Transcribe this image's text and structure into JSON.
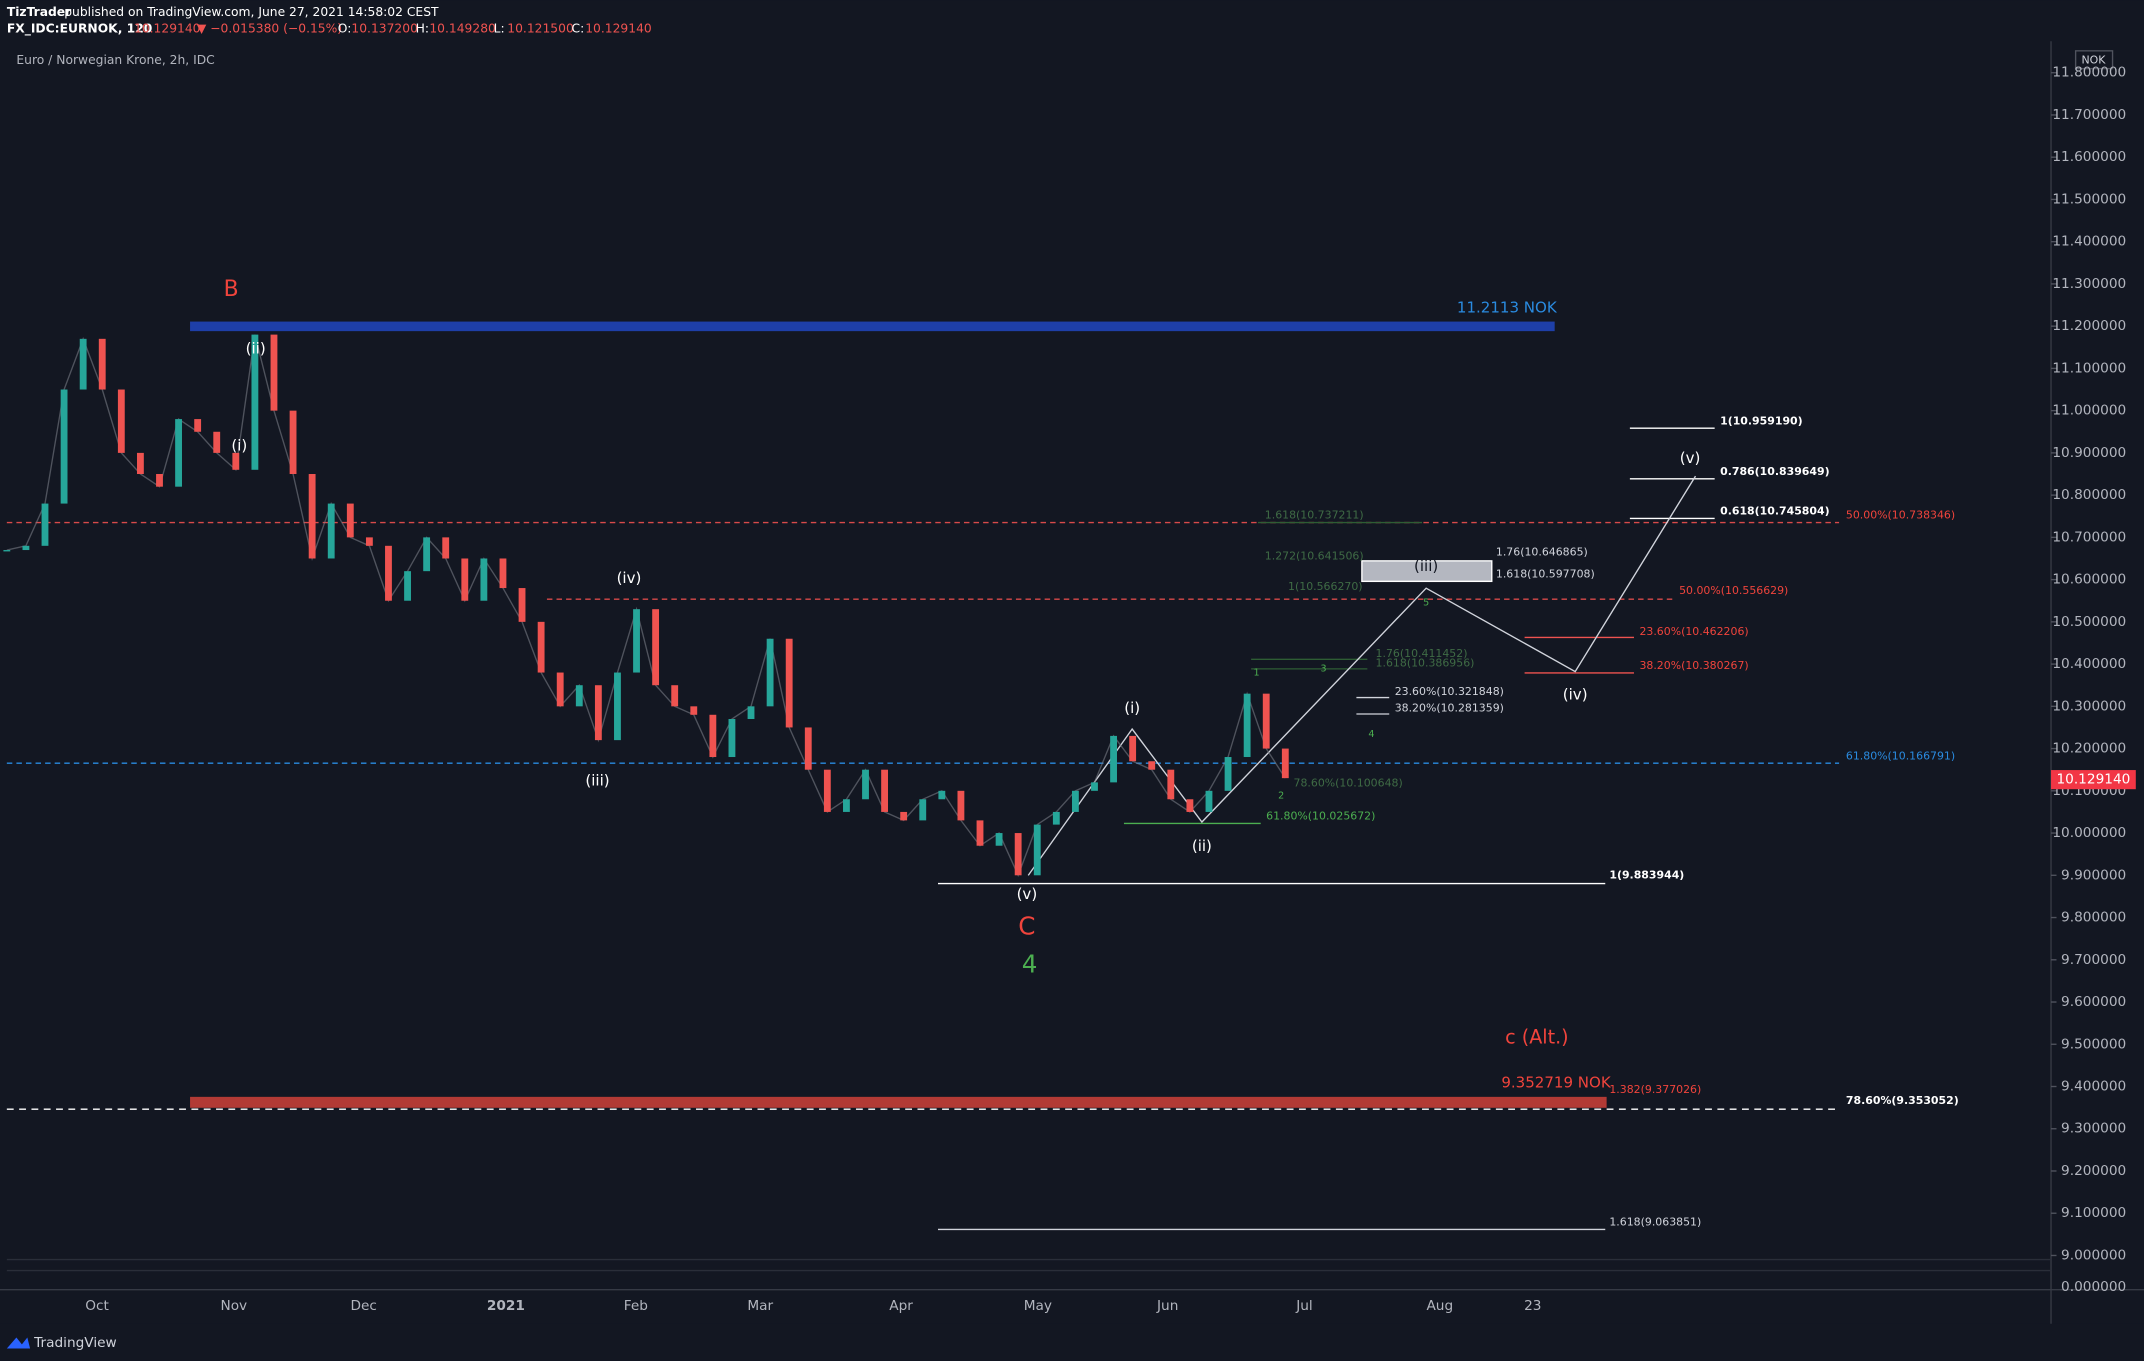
{
  "header": {
    "author": "TizTrader",
    "published": "published on TradingView.com, June 27, 2021 14:58:02 CEST",
    "symbol": "FX_IDC:EURNOK, 120",
    "last": "10.129140",
    "change": "▼ −0.015380 (−0.15%)",
    "ohlc": [
      {
        "label": "O:",
        "value": "10.137200"
      },
      {
        "label": "H:",
        "value": "10.149280"
      },
      {
        "label": "L:",
        "value": "10.121500"
      },
      {
        "label": "C:",
        "value": "10.129140"
      }
    ]
  },
  "chart_data": {
    "type": "line",
    "title": "Euro / Norwegian Krone, 2h, IDC",
    "currency": "NOK",
    "up_color": "#26a69a",
    "down_color": "#ef5350",
    "x_labels": [
      "Oct",
      "Nov",
      "Dec",
      "2021",
      "Feb",
      "Mar",
      "Apr",
      "May",
      "Jun",
      "Jul",
      "Aug",
      "23"
    ],
    "values": [
      10.67,
      10.68,
      10.78,
      11.05,
      11.17,
      11.05,
      10.9,
      10.85,
      10.82,
      10.98,
      10.95,
      10.9,
      10.86,
      11.18,
      11.0,
      10.85,
      10.65,
      10.78,
      10.7,
      10.68,
      10.55,
      10.62,
      10.7,
      10.65,
      10.55,
      10.65,
      10.58,
      10.5,
      10.38,
      10.3,
      10.35,
      10.22,
      10.38,
      10.53,
      10.35,
      10.3,
      10.28,
      10.18,
      10.27,
      10.3,
      10.46,
      10.25,
      10.15,
      10.05,
      10.08,
      10.15,
      10.05,
      10.03,
      10.08,
      10.1,
      10.03,
      9.97,
      10.0,
      9.9,
      10.02,
      10.05,
      10.1,
      10.12,
      10.23,
      10.17,
      10.15,
      10.08,
      10.05,
      10.1,
      10.18,
      10.33,
      10.2,
      10.13
    ],
    "ylim": [
      9.0,
      11.8
    ],
    "yticks": [
      {
        "value": 9.0,
        "label": "9.000000"
      },
      {
        "value": 9.1,
        "label": "9.100000"
      },
      {
        "value": 9.2,
        "label": "9.200000"
      },
      {
        "value": 9.3,
        "label": "9.300000"
      },
      {
        "value": 9.4,
        "label": "9.400000"
      },
      {
        "value": 9.5,
        "label": "9.500000"
      },
      {
        "value": 9.6,
        "label": "9.600000"
      },
      {
        "value": 9.7,
        "label": "9.700000"
      },
      {
        "value": 9.8,
        "label": "9.800000"
      },
      {
        "value": 9.9,
        "label": "9.900000"
      },
      {
        "value": 10.0,
        "label": "10.000000"
      },
      {
        "value": 10.1,
        "label": "10.100000"
      },
      {
        "value": 10.2,
        "label": "10.200000"
      },
      {
        "value": 10.3,
        "label": "10.300000"
      },
      {
        "value": 10.4,
        "label": "10.400000"
      },
      {
        "value": 10.5,
        "label": "10.500000"
      },
      {
        "value": 10.6,
        "label": "10.600000"
      },
      {
        "value": 10.7,
        "label": "10.700000"
      },
      {
        "value": 10.8,
        "label": "10.800000"
      },
      {
        "value": 10.9,
        "label": "10.900000"
      },
      {
        "value": 11.0,
        "label": "11.000000"
      },
      {
        "value": 11.1,
        "label": "11.100000"
      },
      {
        "value": 11.2,
        "label": "11.200000"
      },
      {
        "value": 11.3,
        "label": "11.300000"
      },
      {
        "value": 11.4,
        "label": "11.400000"
      },
      {
        "value": 11.5,
        "label": "11.500000"
      },
      {
        "value": 11.6,
        "label": "11.600000"
      },
      {
        "value": 11.7,
        "label": "11.700000"
      },
      {
        "value": 11.8,
        "label": "11.800000"
      }
    ],
    "axis_break_label": "0.000000",
    "price_badge": "10.129140",
    "annotations": [
      "B",
      "(ii)",
      "(i)",
      "(iv)",
      "(iii)",
      "(v)",
      "C",
      "4",
      "(i)",
      "(ii)",
      "(iii)",
      "(iv)",
      "(v)",
      "c (Alt.)",
      "11.2113 NOK",
      "9.352719 NOK",
      "1(10.959190)",
      "0.786(10.839649)",
      "0.618(10.745804)",
      "50.00%(10.738346)",
      "1.76(10.646865)",
      "1.618(10.597708)",
      "50.00%(10.556629)",
      "23.60%(10.462206)",
      "38.20%(10.380267)",
      "23.60%(10.321848)",
      "38.20%(10.281359)",
      "61.80%(10.166791)",
      "61.80%(10.025672)",
      "78.60%(10.100648)",
      "1(9.883944)",
      "1.382(9.377026)",
      "78.60%(9.353052)",
      "1.618(9.063851)",
      "1.618(10.737211)",
      "1.272(10.641506)",
      "1(10.566270)",
      "1.76(10.411452)",
      "1.618(10.386956)",
      "1",
      "3",
      "5",
      "4",
      "2"
    ]
  },
  "footer": "TradingView"
}
